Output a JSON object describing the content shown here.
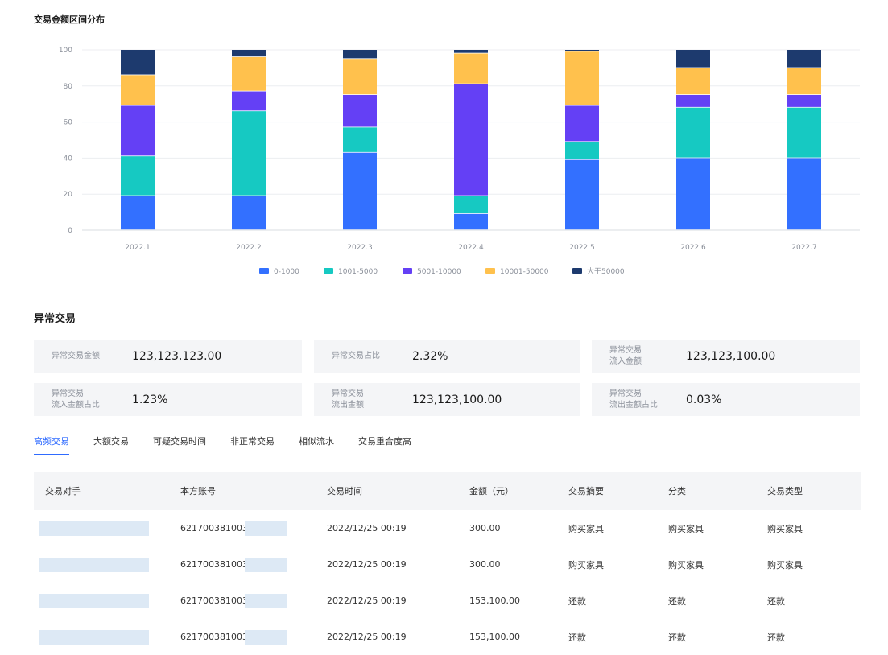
{
  "chart": {
    "title": "交易金额区间分布"
  },
  "chart_data": {
    "type": "bar",
    "stacked": true,
    "categories": [
      "2022.1",
      "2022.2",
      "2022.3",
      "2022.4",
      "2022.5",
      "2022.6",
      "2022.7"
    ],
    "series": [
      {
        "name": "0-1000",
        "color": "#3370ff",
        "values": [
          19,
          19,
          43,
          9,
          39,
          40,
          40
        ]
      },
      {
        "name": "1001-5000",
        "color": "#16c9c2",
        "values": [
          22,
          47,
          14,
          10,
          10,
          28,
          28
        ]
      },
      {
        "name": "5001-10000",
        "color": "#6440f5",
        "values": [
          28,
          11,
          18,
          62,
          20,
          7,
          7
        ]
      },
      {
        "name": "10001-50000",
        "color": "#ffc14d",
        "values": [
          17,
          19,
          20,
          17,
          30,
          15,
          15
        ]
      },
      {
        "name": "大于50000",
        "color": "#1d3a6e",
        "values": [
          14,
          4,
          5,
          2,
          1,
          10,
          10
        ]
      }
    ],
    "ylim": [
      0,
      100
    ],
    "yticks": [
      0,
      20,
      40,
      60,
      80,
      100
    ],
    "grid": true,
    "legend": "bottom"
  },
  "abnormal": {
    "title": "异常交易",
    "metrics": [
      {
        "label": "异常交易金额",
        "value": "123,123,123.00"
      },
      {
        "label": "异常交易占比",
        "value": "2.32%"
      },
      {
        "label": "异常交易\n流入金额",
        "value": "123,123,100.00"
      },
      {
        "label": "异常交易\n流入金额占比",
        "value": "1.23%"
      },
      {
        "label": "异常交易\n流出金额",
        "value": "123,123,100.00"
      },
      {
        "label": "异常交易\n流出金额占比",
        "value": "0.03%"
      }
    ]
  },
  "tabs": [
    "高频交易",
    "大额交易",
    "可疑交易时间",
    "非正常交易",
    "相似流水",
    "交易重合度高"
  ],
  "active_tab": 0,
  "table": {
    "headers": [
      "交易对手",
      "本方账号",
      "交易时间",
      "金额（元）",
      "交易摘要",
      "分类",
      "交易类型"
    ],
    "rows": [
      {
        "account": "621700381003",
        "time": "2022/12/25 00:19",
        "amount": "300.00",
        "summary": "购买家具",
        "category": "购买家具",
        "type": "购买家具"
      },
      {
        "account": "621700381003",
        "time": "2022/12/25 00:19",
        "amount": "300.00",
        "summary": "购买家具",
        "category": "购买家具",
        "type": "购买家具"
      },
      {
        "account": "621700381003",
        "time": "2022/12/25 00:19",
        "amount": "153,100.00",
        "summary": "还款",
        "category": "还款",
        "type": "还款"
      },
      {
        "account": "621700381003",
        "time": "2022/12/25 00:19",
        "amount": "153,100.00",
        "summary": "还款",
        "category": "还款",
        "type": "还款"
      }
    ]
  }
}
